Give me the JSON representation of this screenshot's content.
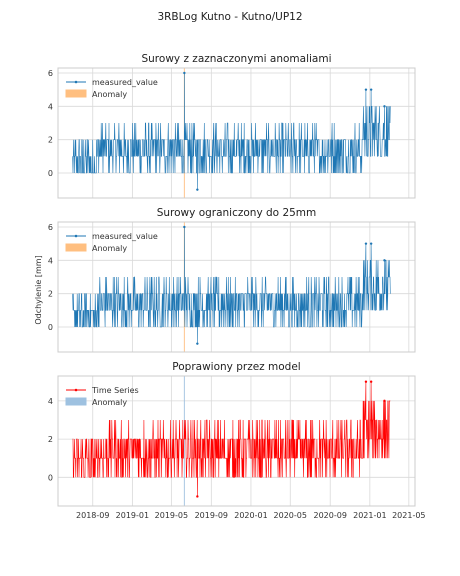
{
  "figure": {
    "suptitle": "3RBLog Kutno - Kutno/UP12",
    "ylabel": "Odchylenie [mm]"
  },
  "colors": {
    "series_blue": "#1f77b4",
    "series_red": "#ff0000",
    "anomaly_orange": "#ffbf80",
    "anomaly_blue": "#9ec1e0",
    "grid": "#d9d9d9"
  },
  "chart_data": [
    {
      "type": "line",
      "title": "Surowy z zaznaczonymi anomaliami",
      "xlim": [
        "2018-05-17",
        "2021-05-20"
      ],
      "ylim": [
        -1.5,
        6.3
      ],
      "yticks": [
        0,
        2,
        4,
        6
      ],
      "grid": true,
      "legend": "top-left",
      "series": [
        {
          "name": "measured_value",
          "color": "#1f77b4",
          "base_low": 0,
          "base_high": 2,
          "spikes": [
            {
              "x": "2019-06-10",
              "y": 6.0
            },
            {
              "x": "2019-07-20",
              "y": -1.0
            },
            {
              "x": "2020-12-20",
              "y": 5.0
            },
            {
              "x": "2021-01-05",
              "y": 5.0
            },
            {
              "x": "2021-02-15",
              "y": 4.0
            }
          ]
        }
      ],
      "anomalies": {
        "name": "Anomaly",
        "color": "#ffbf80",
        "x": [
          "2019-06-10"
        ]
      }
    },
    {
      "type": "line",
      "title": "Surowy ograniczony do 25mm",
      "xlim": [
        "2018-05-17",
        "2021-05-20"
      ],
      "ylim": [
        -1.5,
        6.3
      ],
      "yticks": [
        0,
        2,
        4,
        6
      ],
      "ylabel": "Odchylenie [mm]",
      "grid": true,
      "legend": "top-left",
      "series": [
        {
          "name": "measured_value",
          "color": "#1f77b4",
          "base_low": 0,
          "base_high": 2,
          "spikes": [
            {
              "x": "2019-06-10",
              "y": 6.0
            },
            {
              "x": "2019-07-20",
              "y": -1.0
            },
            {
              "x": "2020-12-20",
              "y": 5.0
            },
            {
              "x": "2021-01-05",
              "y": 5.0
            },
            {
              "x": "2021-02-15",
              "y": 4.0
            }
          ]
        }
      ],
      "anomalies": {
        "name": "Anomaly",
        "color": "#ffbf80",
        "x": [
          "2019-06-10"
        ]
      }
    },
    {
      "type": "line",
      "title": "Poprawiony przez model",
      "xlim": [
        "2018-05-17",
        "2021-05-20"
      ],
      "ylim": [
        -1.5,
        5.3
      ],
      "yticks": [
        0,
        2,
        4
      ],
      "grid": true,
      "legend": "top-left",
      "series": [
        {
          "name": "Time Series",
          "color": "#ff0000",
          "base_low": 0,
          "base_high": 2,
          "spikes": [
            {
              "x": "2019-07-20",
              "y": -1.0
            },
            {
              "x": "2020-12-20",
              "y": 5.0
            },
            {
              "x": "2021-01-05",
              "y": 5.0
            },
            {
              "x": "2021-02-15",
              "y": 4.0
            }
          ]
        }
      ],
      "anomalies": {
        "name": "Anomaly",
        "color": "#9ec1e0",
        "x": [
          "2019-06-10"
        ]
      }
    }
  ],
  "xticks": [
    "2018-09",
    "2019-01",
    "2019-05",
    "2019-09",
    "2020-01",
    "2020-05",
    "2020-09",
    "2021-01",
    "2021-05"
  ]
}
